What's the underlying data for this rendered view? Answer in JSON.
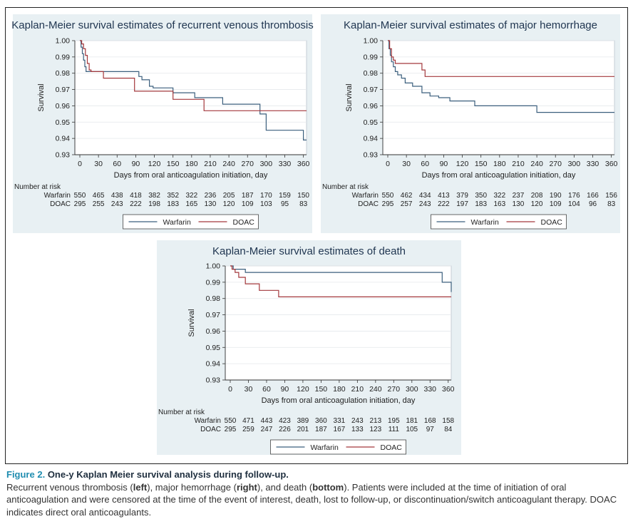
{
  "colors": {
    "warfarin": "#3b5f7d",
    "doac": "#a3383c",
    "panel_bg": "#e8f0f3",
    "plot_bg": "#ffffff"
  },
  "chart_data": [
    {
      "type": "line",
      "step": true,
      "title": "Kaplan-Meier survival estimates of recurrent venous thrombosis",
      "xlabel": "Days from oral anticoagulation initiation, day",
      "ylabel": "Survival",
      "xlim": [
        0,
        365
      ],
      "ylim": [
        0.93,
        1.0
      ],
      "xticks": [
        "0",
        "30",
        "60",
        "90",
        "120",
        "150",
        "180",
        "210",
        "240",
        "270",
        "300",
        "330",
        "360"
      ],
      "yticks": [
        "0.93",
        "0.94",
        "0.95",
        "0.96",
        "0.97",
        "0.98",
        "0.99",
        "1.00"
      ],
      "grid": true,
      "legend_position": "bottom",
      "risk_title": "Number at risk",
      "series": [
        {
          "name": "Warfarin",
          "color_key": "warfarin",
          "x": [
            0,
            2,
            4,
            6,
            8,
            10,
            14,
            95,
            100,
            112,
            118,
            150,
            185,
            230,
            290,
            300,
            360,
            365
          ],
          "y": [
            1.0,
            0.996,
            0.992,
            0.988,
            0.984,
            0.981,
            0.981,
            0.978,
            0.976,
            0.972,
            0.971,
            0.968,
            0.965,
            0.961,
            0.955,
            0.945,
            0.939,
            0.939
          ]
        },
        {
          "name": "DOAC",
          "color_key": "doac",
          "x": [
            0,
            3,
            6,
            9,
            12,
            15,
            18,
            38,
            88,
            150,
            200,
            365
          ],
          "y": [
            1.0,
            0.998,
            0.995,
            0.991,
            0.986,
            0.982,
            0.981,
            0.977,
            0.969,
            0.964,
            0.957,
            0.957
          ]
        }
      ],
      "at_risk": [
        {
          "label": "Warfarin",
          "values": [
            "550",
            "465",
            "438",
            "418",
            "382",
            "352",
            "322",
            "236",
            "205",
            "187",
            "170",
            "159",
            "150"
          ]
        },
        {
          "label": "DOAC",
          "values": [
            "295",
            "255",
            "243",
            "222",
            "198",
            "183",
            "165",
            "130",
            "120",
            "109",
            "103",
            "95",
            "83"
          ]
        }
      ]
    },
    {
      "type": "line",
      "step": true,
      "title": "Kaplan-Meier survival estimates of major hemorrhage",
      "xlabel": "Days from oral anticoagulation initiation, day",
      "ylabel": "Survival",
      "xlim": [
        0,
        365
      ],
      "ylim": [
        0.93,
        1.0
      ],
      "xticks": [
        "0",
        "30",
        "60",
        "90",
        "120",
        "150",
        "180",
        "210",
        "240",
        "270",
        "300",
        "330",
        "360"
      ],
      "yticks": [
        "0.93",
        "0.94",
        "0.95",
        "0.96",
        "0.97",
        "0.98",
        "0.99",
        "1.00"
      ],
      "grid": true,
      "legend_position": "bottom",
      "risk_title": "Number at risk",
      "series": [
        {
          "name": "Warfarin",
          "color_key": "warfarin",
          "x": [
            0,
            2,
            4,
            6,
            9,
            12,
            16,
            22,
            28,
            40,
            55,
            68,
            82,
            100,
            140,
            240,
            365
          ],
          "y": [
            1.0,
            0.995,
            0.991,
            0.987,
            0.984,
            0.981,
            0.979,
            0.977,
            0.974,
            0.972,
            0.968,
            0.966,
            0.965,
            0.963,
            0.96,
            0.956,
            0.956
          ]
        },
        {
          "name": "DOAC",
          "color_key": "doac",
          "x": [
            0,
            3,
            6,
            9,
            12,
            45,
            55,
            60,
            365
          ],
          "y": [
            1.0,
            0.995,
            0.99,
            0.988,
            0.986,
            0.986,
            0.982,
            0.978,
            0.978
          ]
        }
      ],
      "at_risk": [
        {
          "label": "Warfarin",
          "values": [
            "550",
            "462",
            "434",
            "413",
            "379",
            "350",
            "322",
            "237",
            "208",
            "190",
            "176",
            "166",
            "156"
          ]
        },
        {
          "label": "DOAC",
          "values": [
            "295",
            "257",
            "243",
            "222",
            "197",
            "183",
            "163",
            "130",
            "120",
            "109",
            "104",
            "96",
            "83"
          ]
        }
      ]
    },
    {
      "type": "line",
      "step": true,
      "title": "Kaplan-Meier survival estimates of death",
      "xlabel": "Days from oral anticoagulation initiation, day",
      "ylabel": "Survival",
      "xlim": [
        0,
        365
      ],
      "ylim": [
        0.93,
        1.0
      ],
      "xticks": [
        "0",
        "30",
        "60",
        "90",
        "120",
        "150",
        "180",
        "210",
        "240",
        "270",
        "300",
        "330",
        "360"
      ],
      "yticks": [
        "0.93",
        "0.94",
        "0.95",
        "0.96",
        "0.97",
        "0.98",
        "0.99",
        "1.00"
      ],
      "grid": true,
      "legend_position": "bottom",
      "risk_title": "Number at risk",
      "series": [
        {
          "name": "Warfarin",
          "color_key": "warfarin",
          "x": [
            0,
            5,
            25,
            325,
            350,
            365
          ],
          "y": [
            1.0,
            0.998,
            0.996,
            0.996,
            0.99,
            0.984
          ]
        },
        {
          "name": "DOAC",
          "color_key": "doac",
          "x": [
            0,
            3,
            8,
            14,
            25,
            48,
            80,
            365
          ],
          "y": [
            1.0,
            0.998,
            0.996,
            0.993,
            0.989,
            0.985,
            0.981,
            0.981
          ]
        }
      ],
      "at_risk": [
        {
          "label": "Warfarin",
          "values": [
            "550",
            "471",
            "443",
            "423",
            "389",
            "360",
            "331",
            "243",
            "213",
            "195",
            "181",
            "168",
            "158"
          ]
        },
        {
          "label": "DOAC",
          "values": [
            "295",
            "259",
            "247",
            "226",
            "201",
            "187",
            "167",
            "133",
            "123",
            "111",
            "105",
            "97",
            "84"
          ]
        }
      ]
    }
  ],
  "caption": {
    "figure_number": "Figure 2.",
    "figure_title": "One-y Kaplan Meier survival analysis during follow-up.",
    "text_1": "Recurrent venous thrombosis (",
    "bold_left": "left",
    "text_2": "), major hemorrhage (",
    "bold_right": "right",
    "text_3": "), and death (",
    "bold_bottom": "bottom",
    "text_4": "). Patients were included at the time of initiation of oral anticoagulation and were censored at the time of the event of interest, death, lost to follow-up, or discontinuation/switch anticoagulant therapy. DOAC indicates direct oral anticoagulants."
  }
}
